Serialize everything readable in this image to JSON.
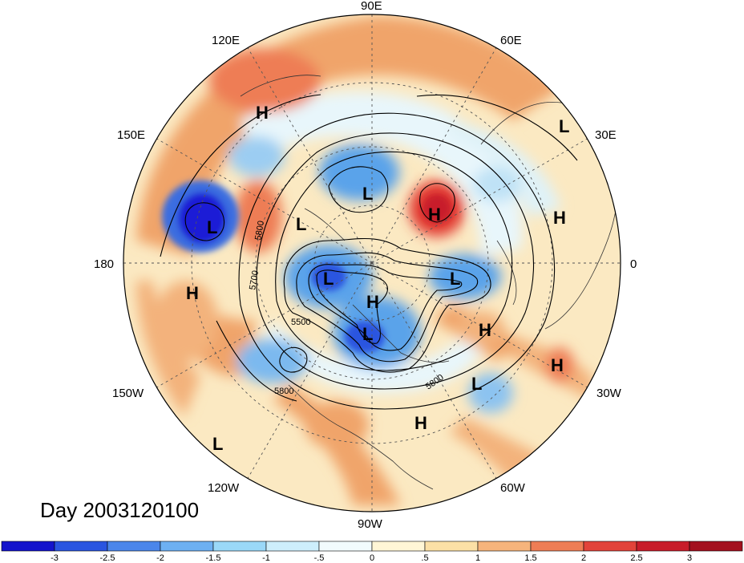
{
  "map": {
    "projection": "polar stereographic, north pole centred",
    "longitude_labels": [
      "90E",
      "120E",
      "60E",
      "150E",
      "30E",
      "180",
      "0",
      "150W",
      "30W",
      "120W",
      "60W",
      "90W"
    ],
    "pressure_systems": [
      "H",
      "L",
      "L",
      "L",
      "H",
      "L",
      "H",
      "H",
      "L",
      "L",
      "H",
      "L",
      "H",
      "H",
      "L",
      "H",
      "L"
    ],
    "contour_labels": [
      "5800",
      "5700",
      "5500",
      "5800",
      "5800"
    ],
    "colors": {
      "strong_negative": "#1f1fd6",
      "negative": "#5aa3ea",
      "weak_negative": "#ddf5fb",
      "weak_positive": "#fbe9c2",
      "positive": "#f0a46a",
      "strong_positive": "#e23a33"
    }
  },
  "caption": "Day 2003120100",
  "colorbar": {
    "labels": [
      "-3",
      "-2.5",
      "-2",
      "-1.5",
      "-1",
      "-.5",
      "0",
      ".5",
      "1",
      "1.5",
      "2",
      "2.5",
      "3"
    ],
    "colors": [
      "#1414cc",
      "#2a55e0",
      "#4b86ea",
      "#6db0f2",
      "#9ad8f8",
      "#cdeefb",
      "#f2fbfd",
      "#fff6d6",
      "#fbe0a6",
      "#f6b47c",
      "#ee7d55",
      "#e2433a",
      "#c81c2a",
      "#a3101e"
    ]
  }
}
